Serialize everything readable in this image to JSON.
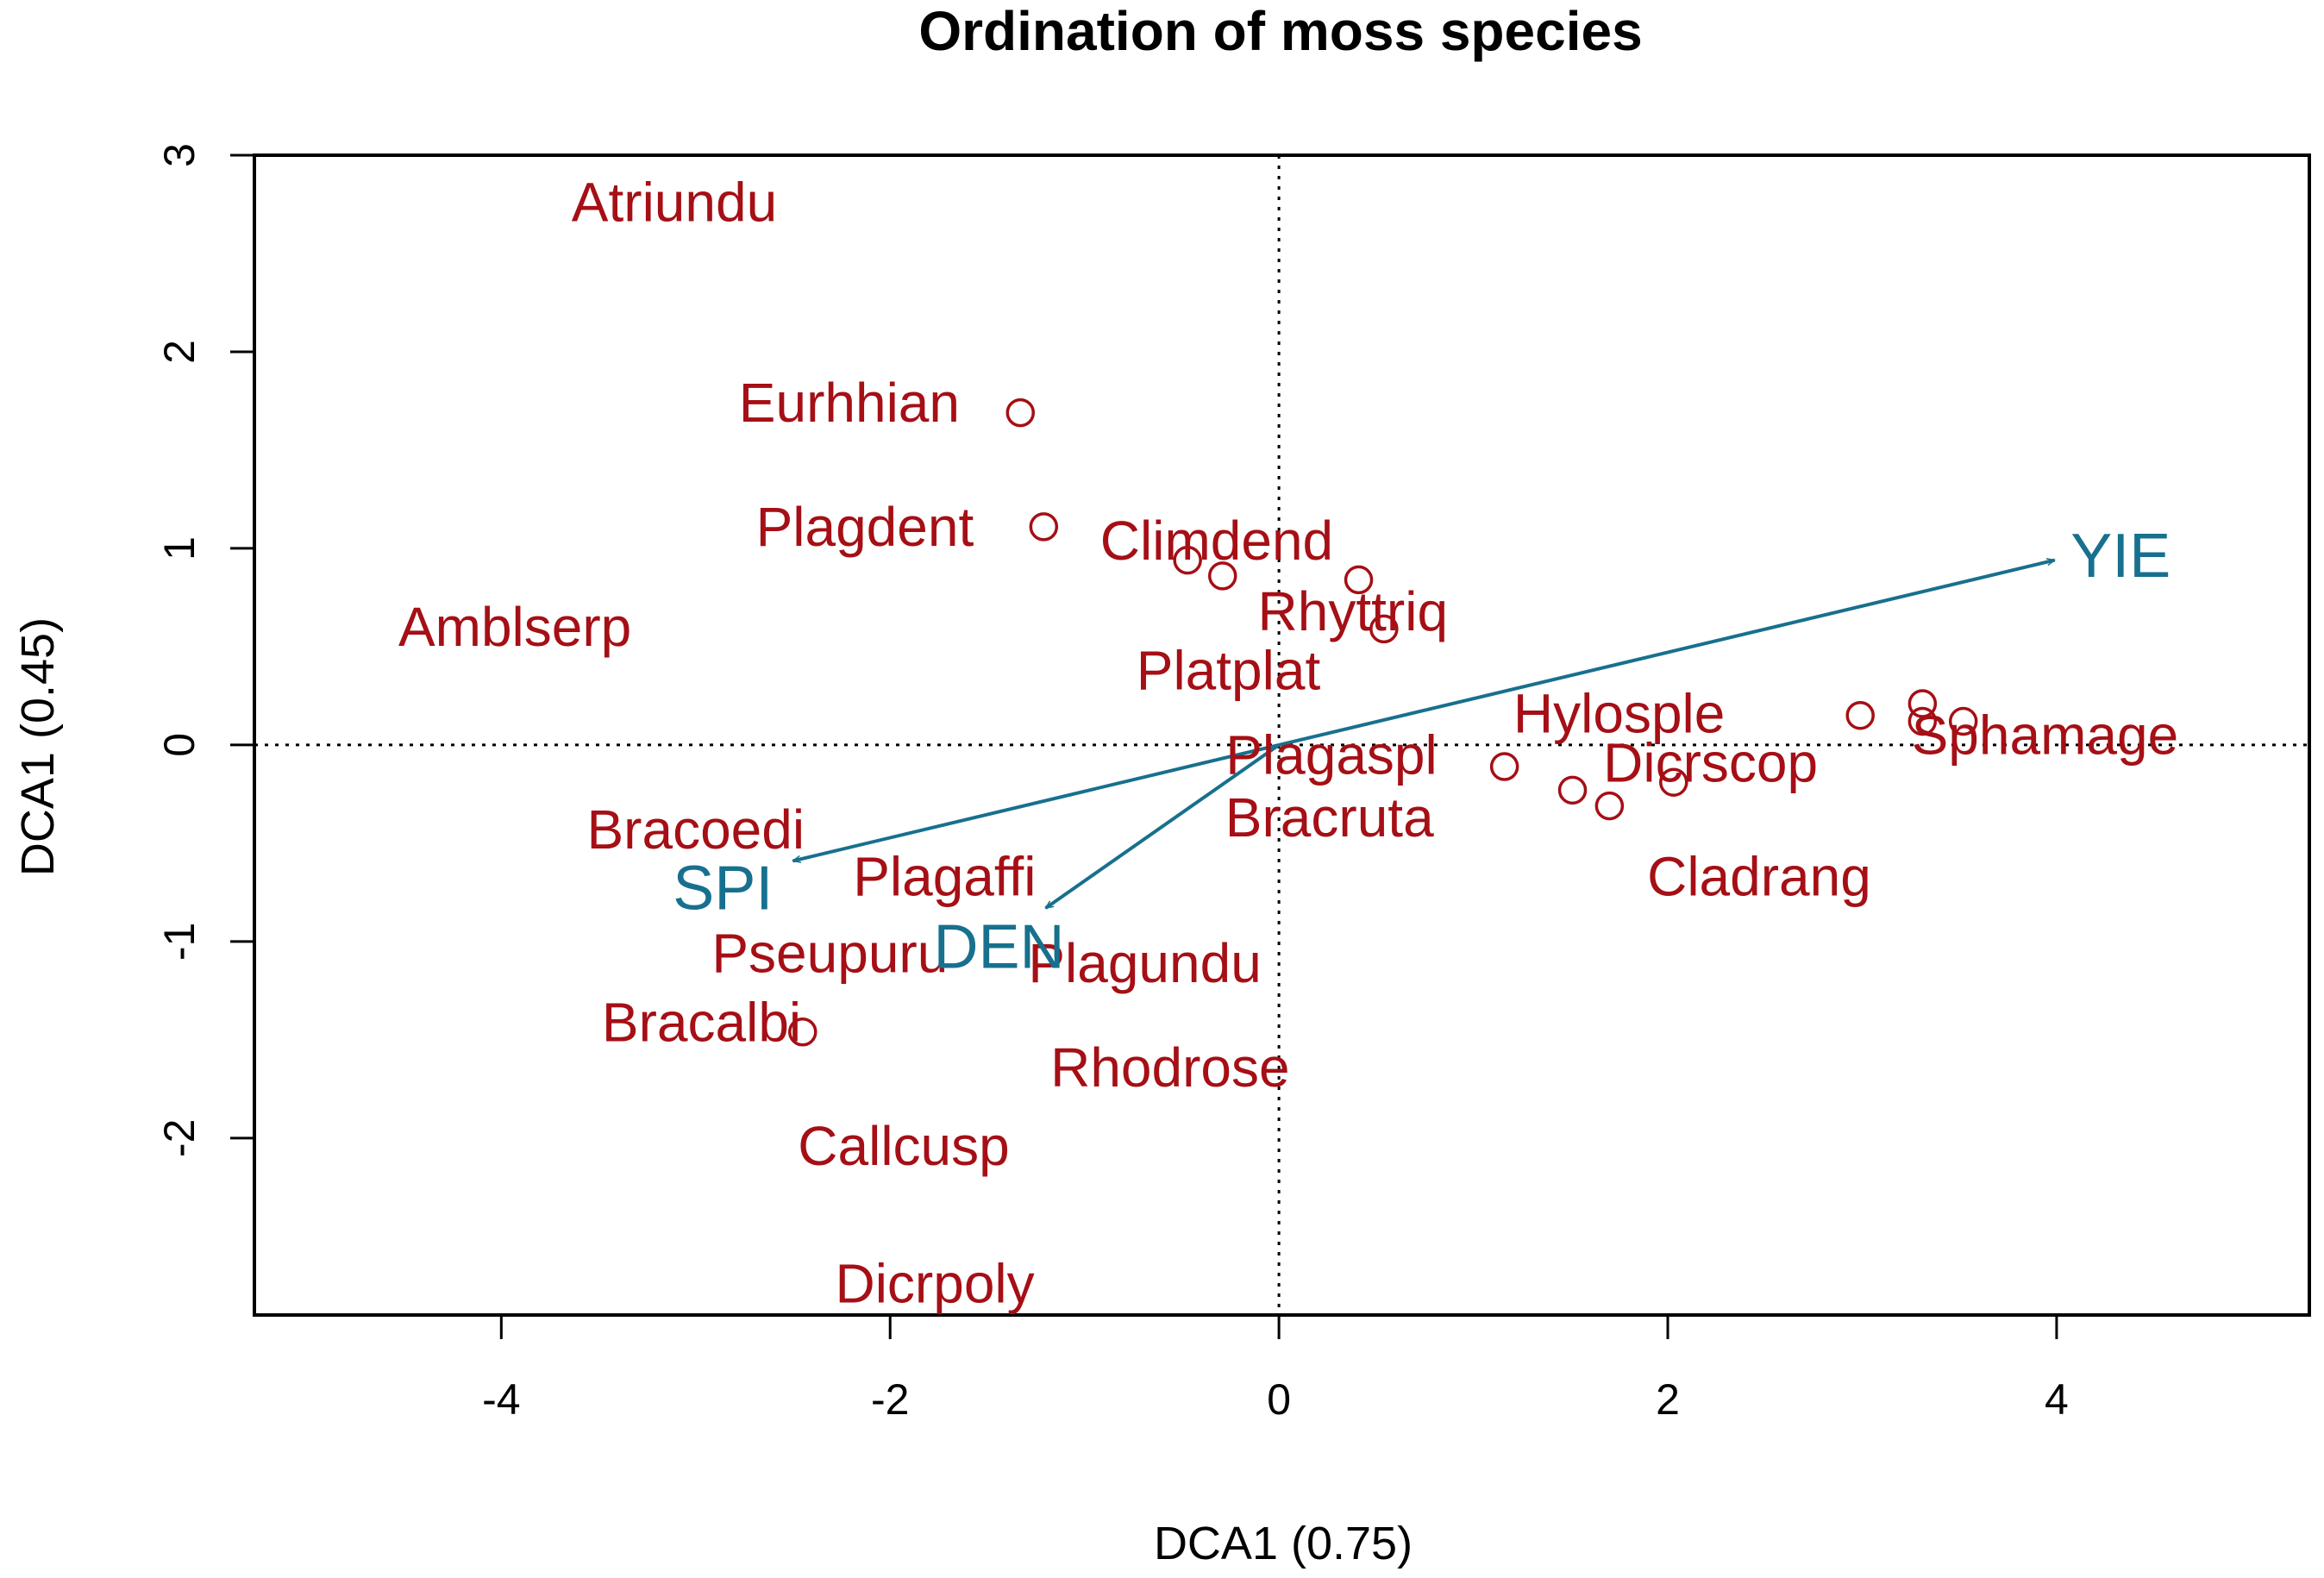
{
  "chart_data": {
    "type": "scatter",
    "title": "Ordination of moss species",
    "xlabel": "DCA1 (0.75)",
    "ylabel": "DCA1 (0.45)",
    "xlim": [
      -5.27,
      5.3
    ],
    "ylim": [
      -2.9,
      3.0
    ],
    "xticks": [
      -4,
      -2,
      0,
      2,
      4
    ],
    "yticks": [
      -2,
      -1,
      0,
      1,
      2,
      3
    ],
    "reference_lines": {
      "x": 0,
      "y": 0,
      "style": "dotted"
    },
    "colors": {
      "species": "#A50F15",
      "site_points": "#A50F15",
      "env_vectors": "#17708E"
    },
    "site_points": [
      {
        "x": -1.33,
        "y": 1.69
      },
      {
        "x": -1.21,
        "y": 1.11
      },
      {
        "x": -0.47,
        "y": 0.94
      },
      {
        "x": -0.29,
        "y": 0.86
      },
      {
        "x": 0.41,
        "y": 0.84
      },
      {
        "x": 0.54,
        "y": 0.59
      },
      {
        "x": 1.16,
        "y": -0.11
      },
      {
        "x": 1.51,
        "y": -0.23
      },
      {
        "x": 1.7,
        "y": -0.31
      },
      {
        "x": 2.03,
        "y": -0.19
      },
      {
        "x": 2.99,
        "y": 0.15
      },
      {
        "x": 3.31,
        "y": 0.21
      },
      {
        "x": 3.31,
        "y": 0.12
      },
      {
        "x": 3.52,
        "y": 0.12
      },
      {
        "x": -2.45,
        "y": -1.46
      }
    ],
    "species": [
      {
        "name": "Atriundu",
        "x": -3.11,
        "y": 2.76
      },
      {
        "name": "Eurhhian",
        "x": -2.21,
        "y": 1.74
      },
      {
        "name": "Plagdent",
        "x": -2.13,
        "y": 1.11
      },
      {
        "name": "Climdend",
        "x": -0.32,
        "y": 1.04
      },
      {
        "name": "Amblserp",
        "x": -3.93,
        "y": 0.6
      },
      {
        "name": "Rhyttriq",
        "x": 0.38,
        "y": 0.68
      },
      {
        "name": "Platplat",
        "x": -0.26,
        "y": 0.38
      },
      {
        "name": "Hylosple",
        "x": 1.75,
        "y": 0.16
      },
      {
        "name": "Sphamage",
        "x": 3.94,
        "y": 0.05
      },
      {
        "name": "Plagaspl",
        "x": 0.27,
        "y": -0.05
      },
      {
        "name": "Dicrscop",
        "x": 2.22,
        "y": -0.09
      },
      {
        "name": "Bracoedi",
        "x": -3.0,
        "y": -0.43
      },
      {
        "name": "Bracruta",
        "x": 0.26,
        "y": -0.37
      },
      {
        "name": "Cladrang",
        "x": 2.47,
        "y": -0.67
      },
      {
        "name": "Plagaffi",
        "x": -1.72,
        "y": -0.67
      },
      {
        "name": "Pseupuru",
        "x": -2.31,
        "y": -1.06
      },
      {
        "name": "Plagundu",
        "x": -0.69,
        "y": -1.11
      },
      {
        "name": "Bracalbi",
        "x": -2.97,
        "y": -1.41
      },
      {
        "name": "Rhodrose",
        "x": -0.56,
        "y": -1.64
      },
      {
        "name": "Callcusp",
        "x": -1.93,
        "y": -2.04
      },
      {
        "name": "Dicrpoly",
        "x": -1.77,
        "y": -2.74
      }
    ],
    "env_vectors": [
      {
        "name": "YIE",
        "x": 3.99,
        "y": 0.94,
        "label_x": 4.33,
        "label_y": 0.96
      },
      {
        "name": "SPI",
        "x": -2.5,
        "y": -0.59,
        "label_x": -2.86,
        "label_y": -0.73
      },
      {
        "name": "DEN",
        "x": -1.2,
        "y": -0.83,
        "label_x": -1.44,
        "label_y": -1.03
      }
    ]
  }
}
